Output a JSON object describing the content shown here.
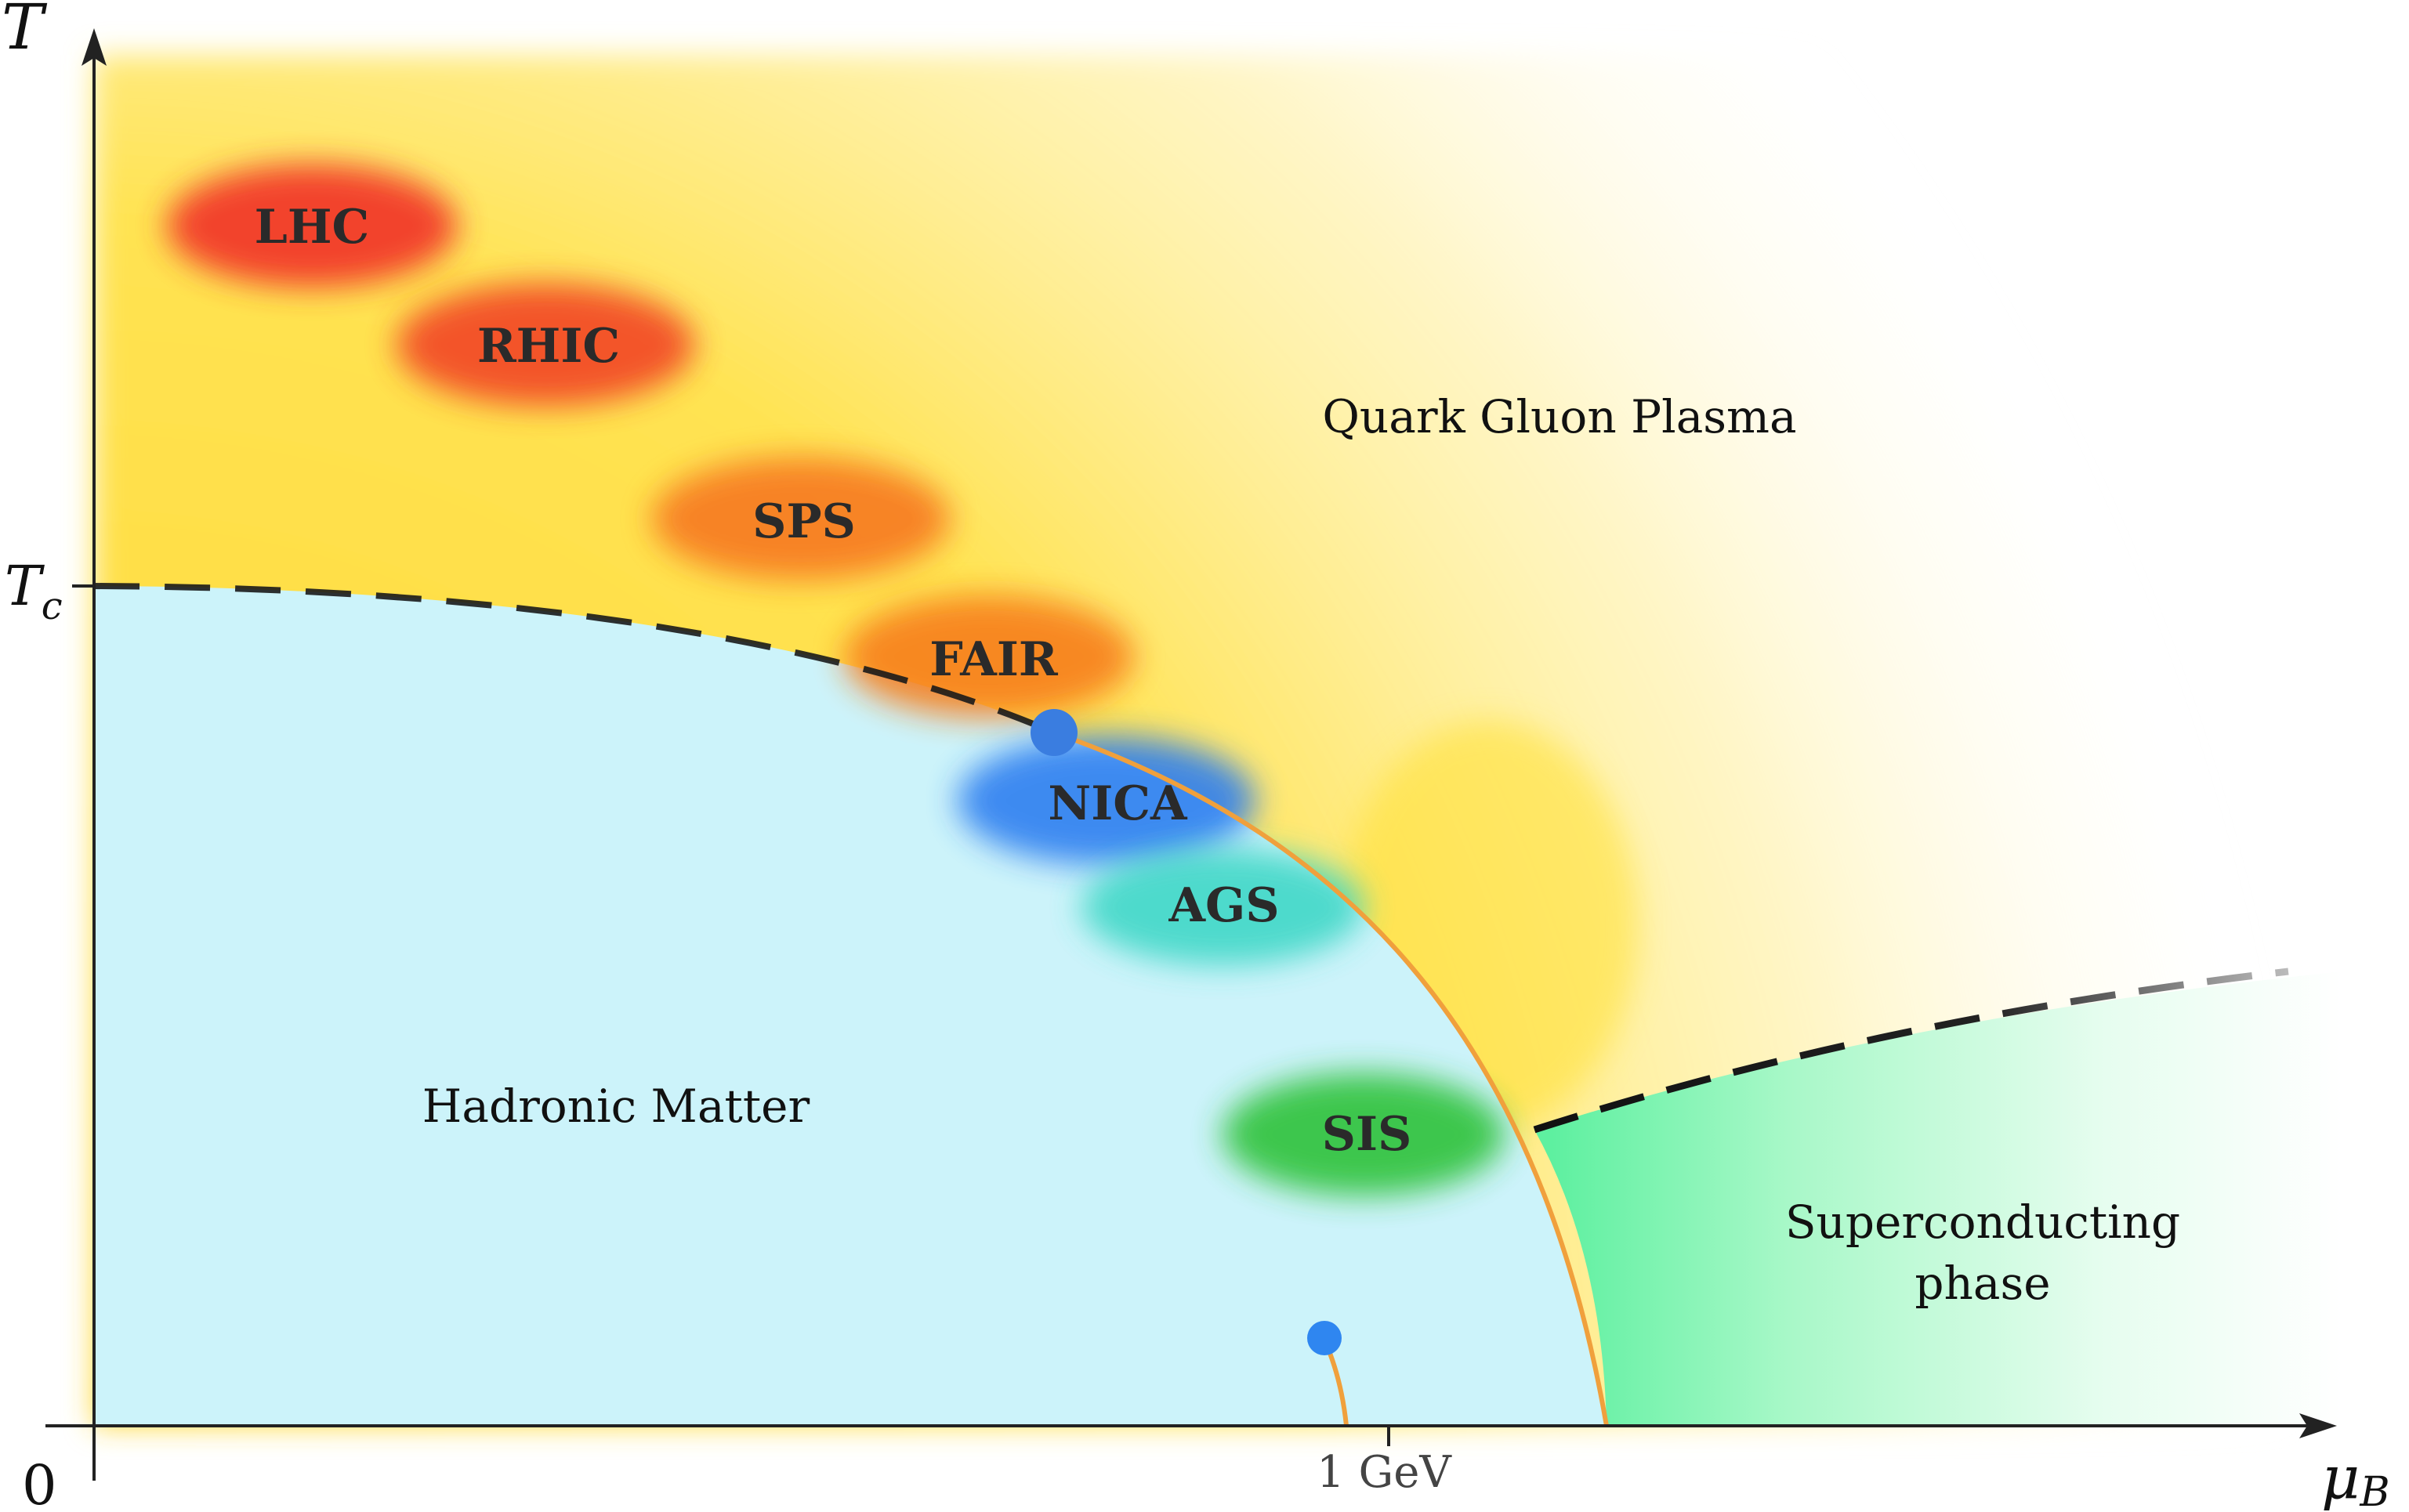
{
  "axes": {
    "y_label_main": "T",
    "y_tick_main": "T",
    "y_tick_sub": "c",
    "x_label_main": "μ",
    "x_label_sub": "B",
    "origin": "0",
    "x_tick": "1 GeV"
  },
  "regions": {
    "qgp": "Quark Gluon Plasma",
    "hadronic": "Hadronic Matter",
    "superconducting_line1": "Superconducting",
    "superconducting_line2": "phase"
  },
  "experiments": [
    {
      "label": "LHC",
      "color": "#f23a2a"
    },
    {
      "label": "RHIC",
      "color": "#f24a28"
    },
    {
      "label": "SPS",
      "color": "#f77b22"
    },
    {
      "label": "FAIR",
      "color": "#f77f1a"
    },
    {
      "label": "NICA",
      "color": "#2d7ff0"
    },
    {
      "label": "AGS",
      "color": "#38d6c4"
    },
    {
      "label": "SIS",
      "color": "#2ec23a"
    }
  ],
  "colors": {
    "hadronic_fill": "#ccf3fa",
    "qgp_gradient_inner": "#ffdf3a",
    "superconducting_fill": "#8ff5bf",
    "transition_line": "#f0a03c",
    "critical_point": "#3a7de0",
    "boundary_dash": "#1a1a1a",
    "axis": "#222222"
  }
}
